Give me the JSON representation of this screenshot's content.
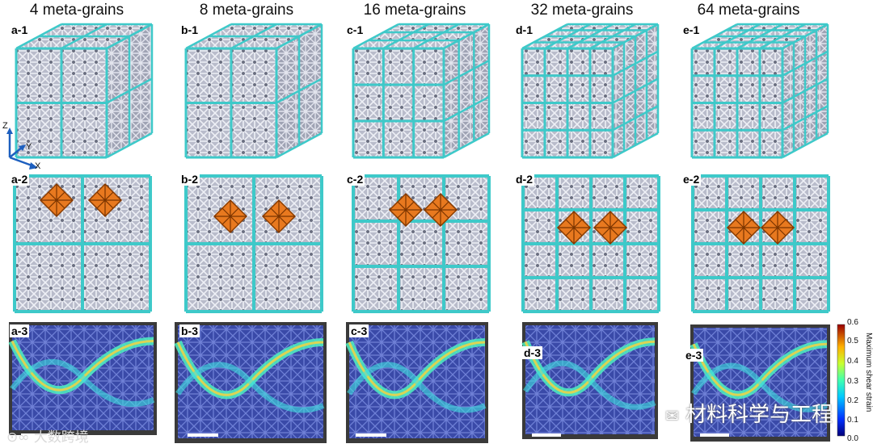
{
  "columns": [
    {
      "title": "4 meta-grains",
      "labels": [
        "a-1",
        "a-2",
        "a-3"
      ],
      "grid": 2
    },
    {
      "title": "8 meta-grains",
      "labels": [
        "b-1",
        "b-2",
        "b-3"
      ],
      "grid": 2
    },
    {
      "title": "16 meta-grains",
      "labels": [
        "c-1",
        "c-2",
        "c-3"
      ],
      "grid": 3
    },
    {
      "title": "32 meta-grains",
      "labels": [
        "d-1",
        "d-2",
        "d-3"
      ],
      "grid": 4
    },
    {
      "title": "64 meta-grains",
      "labels": [
        "e-1",
        "e-2",
        "e-3"
      ],
      "grid": 4
    }
  ],
  "axes": {
    "z": "Z",
    "y": "Y",
    "x": "X"
  },
  "colorbar": {
    "title": "Maximum shear strain",
    "ticks": [
      "0.6",
      "0.5",
      "0.4",
      "0.3",
      "0.2",
      "0.1",
      "0.0"
    ]
  },
  "watermark_left": "大数跨境",
  "watermark_right": "材料科学与工程",
  "colors": {
    "grain_boundary": "#3ec9c9",
    "unit_cell": "#e8791f",
    "lattice": "#c9cbd8"
  }
}
